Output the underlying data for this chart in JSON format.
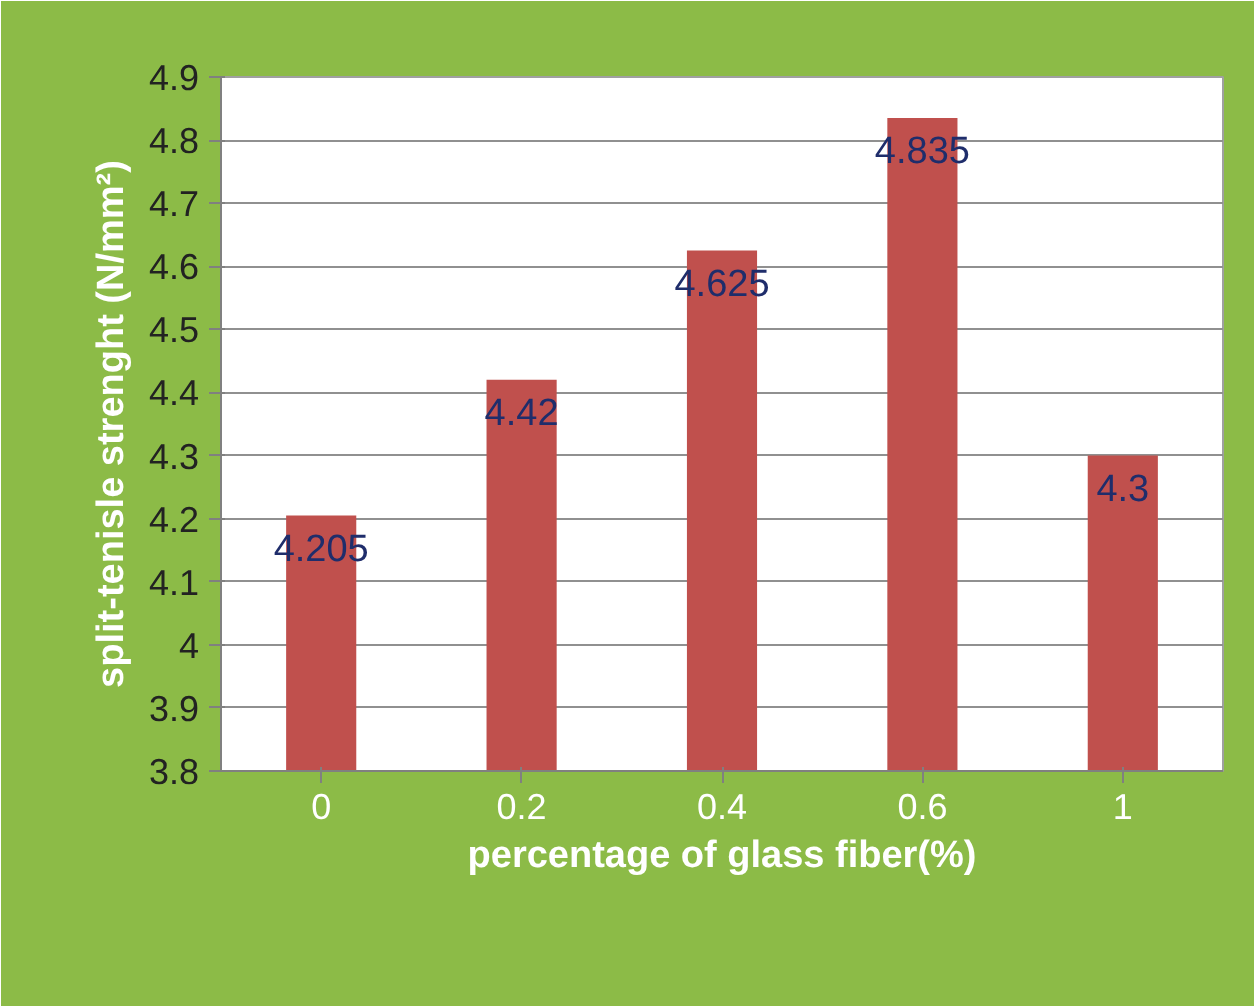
{
  "chart_data": {
    "type": "bar",
    "xlabel": "percentage of glass fiber(%)",
    "ylabel": "split-tenisle strenght (N/mm²)",
    "categories": [
      "0",
      "0.2",
      "0.4",
      "0.6",
      "1"
    ],
    "values": [
      4.205,
      4.42,
      4.625,
      4.835,
      4.3
    ],
    "color": "#c0504d",
    "data_labels": true,
    "grid": "y",
    "ylim": [
      3.8,
      4.9
    ],
    "yticks": [
      3.8,
      3.9,
      4,
      4.1,
      4.2,
      4.3,
      4.4,
      4.5,
      4.6,
      4.7,
      4.8,
      4.9
    ]
  }
}
